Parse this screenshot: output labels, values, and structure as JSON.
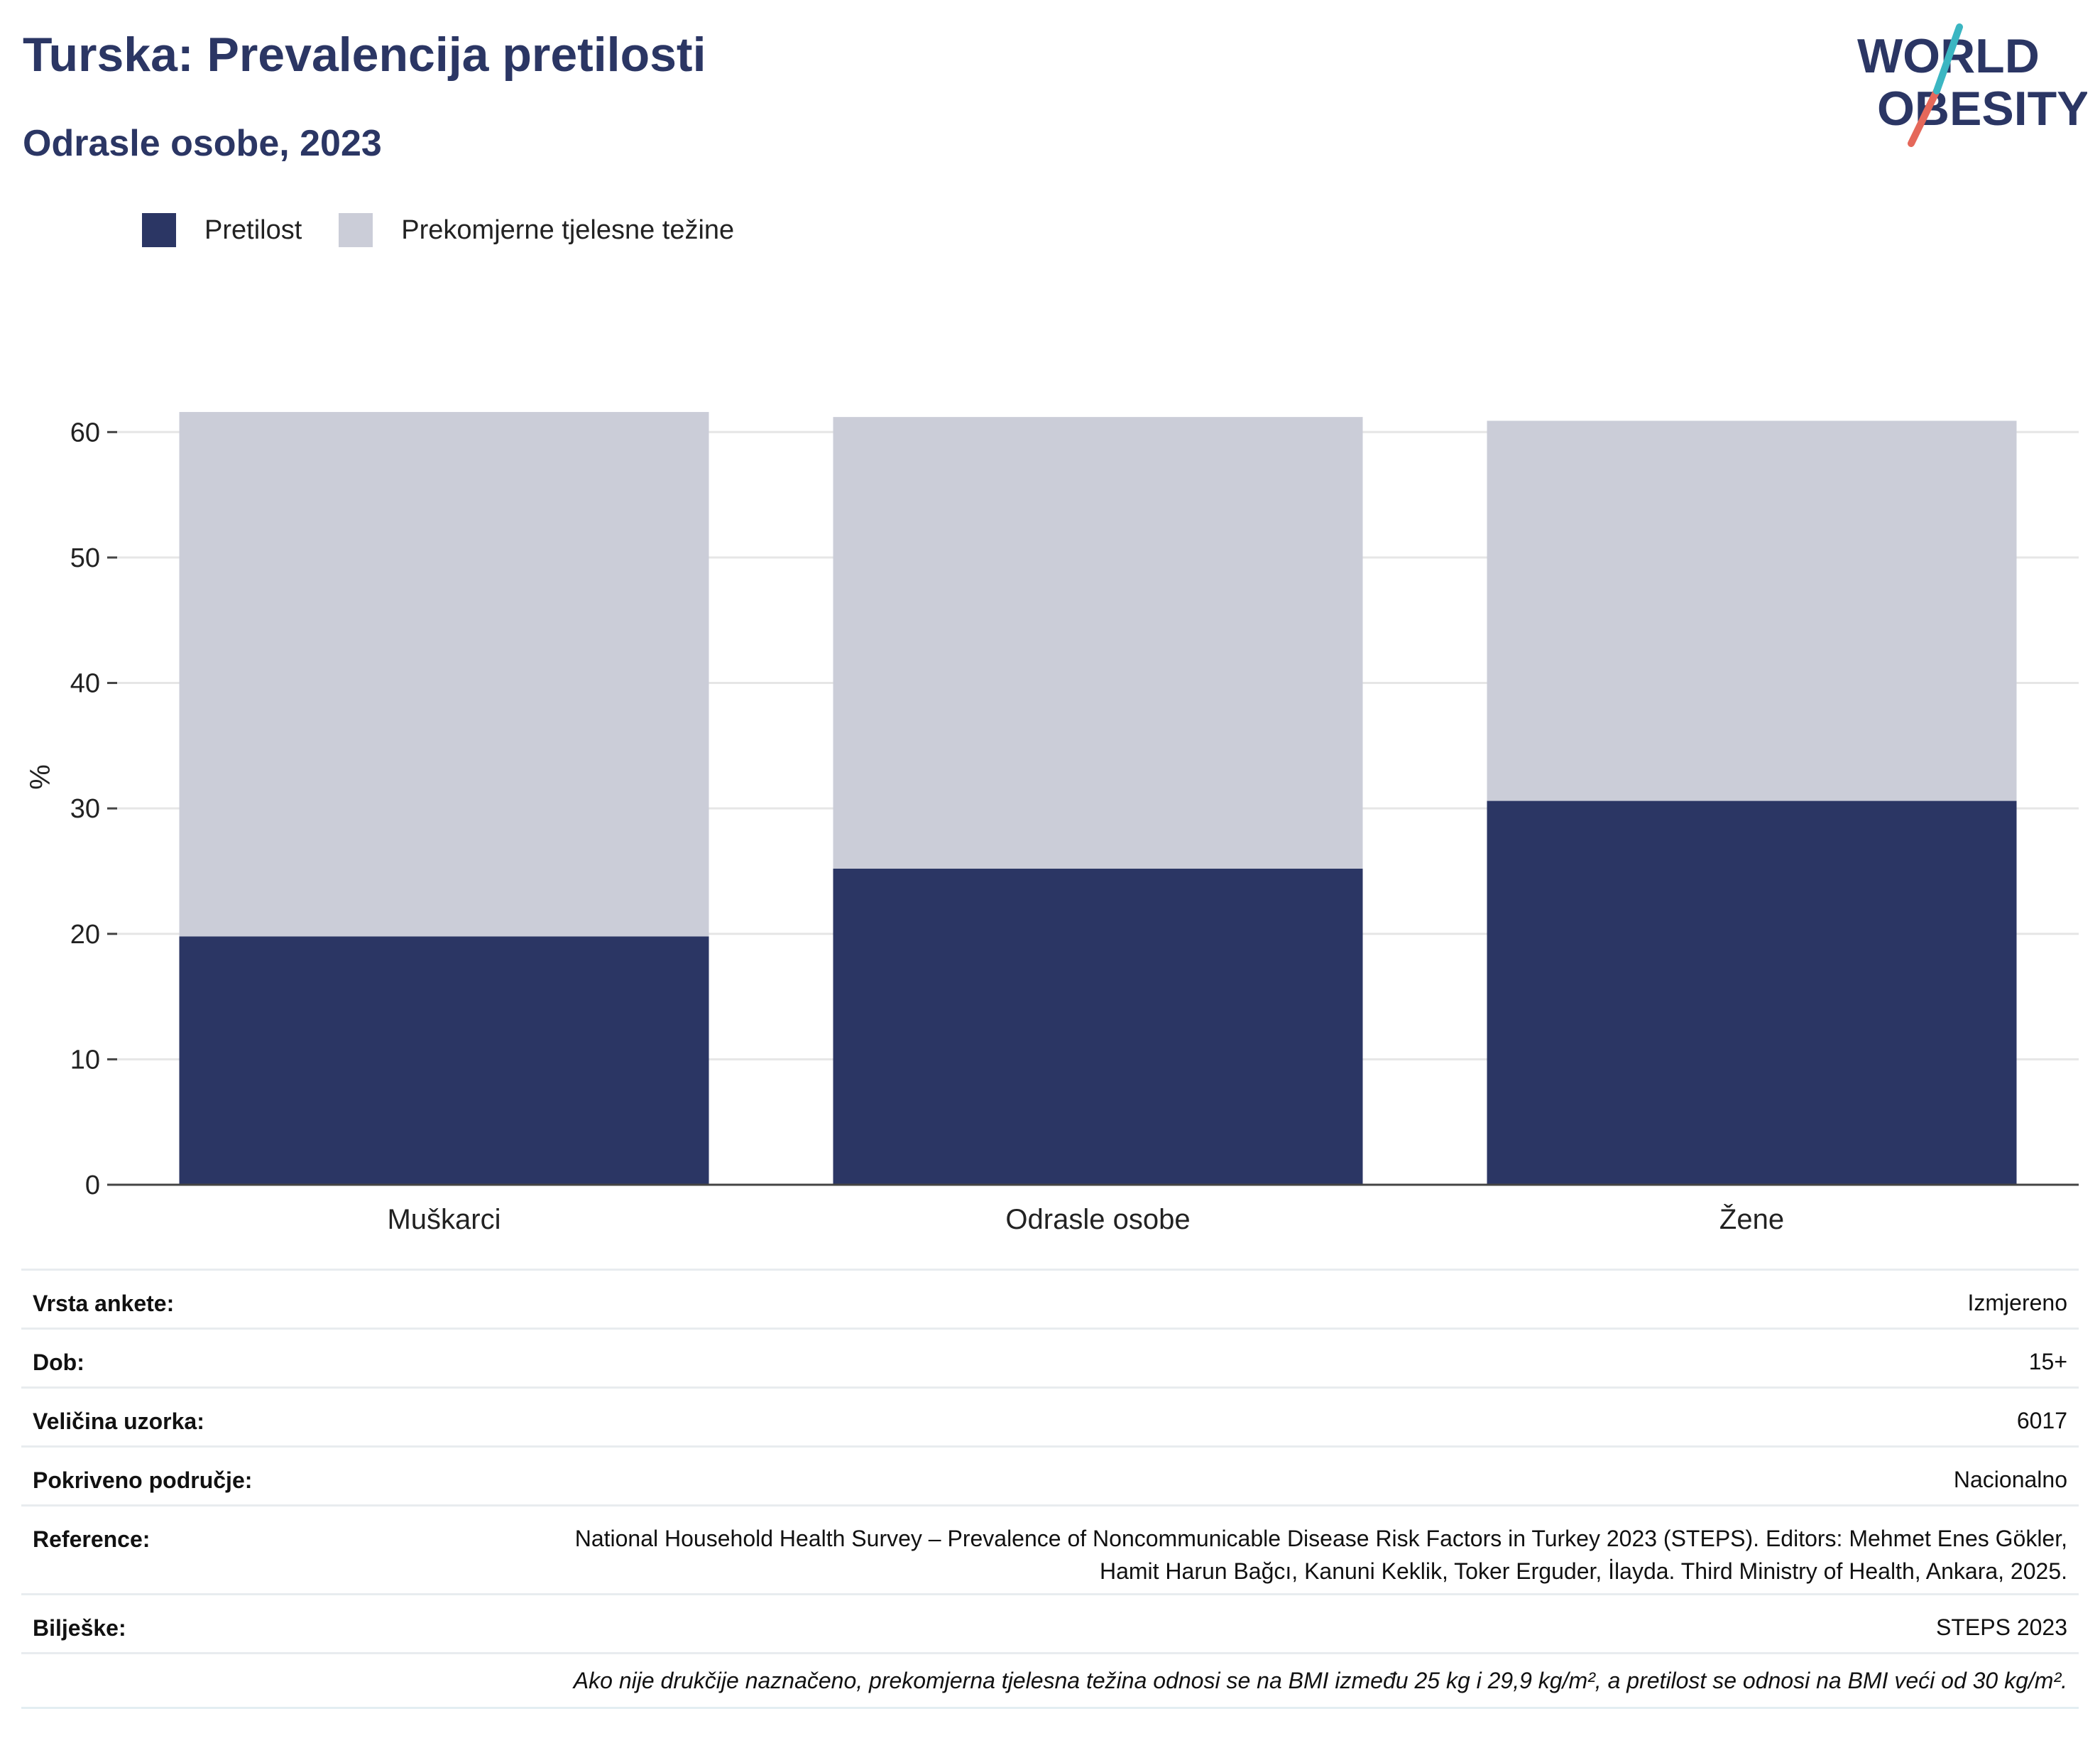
{
  "title": "Turska: Prevalencija pretilosti",
  "subtitle": "Odrasle osobe, 2023",
  "logo": {
    "line1": "WORLD",
    "line2": "OBESITY"
  },
  "colors": {
    "obesity": "#2b3664",
    "overweight": "#cbcdd8",
    "title": "#2b3664",
    "grid": "#e6e6e6",
    "axis": "#444444"
  },
  "legend": [
    {
      "label": "Pretilost",
      "color": "#2b3664"
    },
    {
      "label": "Prekomjerne tjelesne težine",
      "color": "#cbcdd8"
    }
  ],
  "chart_data": {
    "type": "bar",
    "stacked": true,
    "categories": [
      "Muškarci",
      "Odrasle osobe",
      "Žene"
    ],
    "series": [
      {
        "name": "Pretilost",
        "values": [
          19.8,
          25.2,
          30.6
        ]
      },
      {
        "name": "Prekomjerne tjelesne težine",
        "values": [
          41.8,
          36.0,
          30.3
        ]
      }
    ],
    "ylabel": "%",
    "ylim": [
      0,
      65
    ],
    "yticks": [
      0,
      10,
      20,
      30,
      40,
      50,
      60
    ],
    "grid": true,
    "legend_position": "top-left"
  },
  "info_table": [
    {
      "key": "Vrsta ankete:",
      "value": "Izmjereno"
    },
    {
      "key": "Dob:",
      "value": "15+"
    },
    {
      "key": "Veličina uzorka:",
      "value": "6017"
    },
    {
      "key": "Pokriveno područje:",
      "value": "Nacionalno"
    },
    {
      "key": "Reference:",
      "value": "National Household Health Survey – Prevalence of Noncommunicable Disease Risk Factors in Turkey 2023 (STEPS). Editors: Mehmet Enes Gökler, Hamit Harun Bağcı, Kanuni Keklik, Toker Erguder, İlayda. Third Ministry of Health, Ankara, 2025."
    },
    {
      "key": "Bilješke:",
      "value": "STEPS 2023"
    }
  ],
  "footnote": "Ako nije drukčije naznačeno, prekomjerna tjelesna težina odnosi se na BMI između 25 kg i 29,9 kg/m², a pretilost se odnosi na BMI veći od 30 kg/m²."
}
